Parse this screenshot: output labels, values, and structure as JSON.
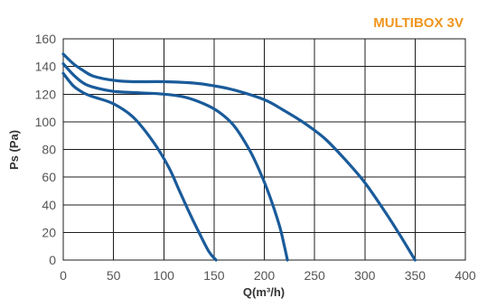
{
  "chart_data": {
    "type": "line",
    "title": "MULTIBOX 3V",
    "xlabel": "Q(m³/h)",
    "ylabel": "Ps (Pa)",
    "xlim": [
      0,
      400
    ],
    "ylim": [
      0,
      160
    ],
    "x_ticks": [
      "0",
      "50",
      "100",
      "150",
      "200",
      "250",
      "300",
      "350",
      "400"
    ],
    "y_ticks": [
      "0",
      "20",
      "40",
      "60",
      "80",
      "100",
      "120",
      "140",
      "160"
    ],
    "grid": true,
    "colors": {
      "title": "#f0951e",
      "curve": "#1a5b9a",
      "grid": "#1c1c1c"
    },
    "series": [
      {
        "x": [
          0,
          10,
          20,
          30,
          50,
          70,
          90,
          105,
          115,
          125,
          135,
          145,
          152
        ],
        "y": [
          135,
          126,
          121,
          118,
          113,
          103,
          85,
          67,
          51,
          35,
          20,
          6,
          0
        ]
      },
      {
        "x": [
          0,
          10,
          20,
          30,
          50,
          75,
          100,
          120,
          140,
          155,
          170,
          185,
          195,
          205,
          215,
          220,
          223
        ],
        "y": [
          142,
          134,
          128,
          125,
          122,
          121,
          120,
          118,
          113,
          107,
          97,
          80,
          65,
          47,
          25,
          10,
          0
        ]
      },
      {
        "x": [
          0,
          10,
          20,
          30,
          50,
          70,
          100,
          130,
          150,
          170,
          200,
          220,
          240,
          260,
          280,
          300,
          320,
          335,
          345,
          350
        ],
        "y": [
          149,
          142,
          137,
          133,
          130,
          129,
          129,
          128,
          126,
          123,
          116,
          108,
          99,
          88,
          73,
          56,
          35,
          18,
          6,
          0
        ]
      }
    ]
  }
}
